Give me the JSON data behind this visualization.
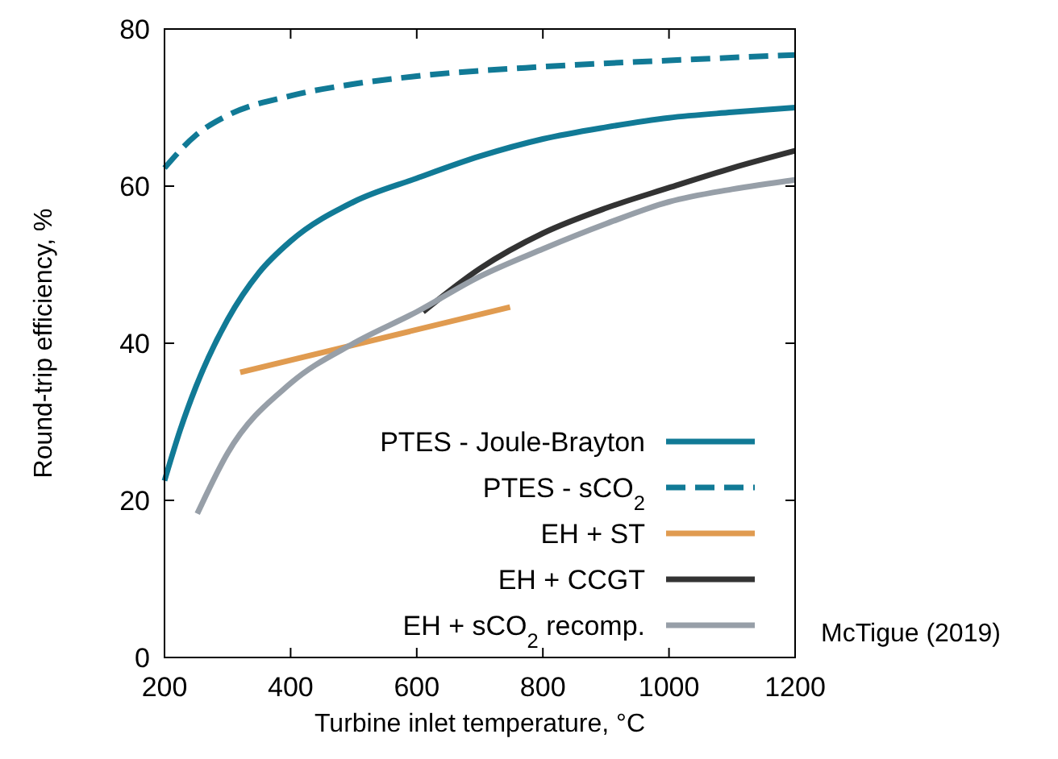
{
  "chart_data": {
    "type": "line",
    "xlabel": "Turbine inlet temperature, °C",
    "ylabel": "Round-trip efficiency, %",
    "xlim": [
      200,
      1200
    ],
    "ylim": [
      0,
      80
    ],
    "xticks": [
      200,
      400,
      600,
      800,
      1000,
      1200
    ],
    "yticks": [
      0,
      20,
      40,
      60,
      80
    ],
    "legend": "bottom right",
    "annotations": [
      "McTigue (2019)"
    ],
    "series": [
      {
        "name": "PTES - Joule-Brayton",
        "color": "#117a96",
        "line_style": "solid",
        "x": [
          200,
          225,
          250,
          300,
          350,
          400,
          500,
          600,
          700,
          800,
          900,
          1000,
          1100,
          1200
        ],
        "values": [
          22.5,
          29,
          34.5,
          43,
          49,
          53,
          58,
          61,
          63.8,
          66,
          67.5,
          68.7,
          69.4,
          70
        ]
      },
      {
        "name": "PTES - sCO$_{2}$",
        "color": "#117a96",
        "line_style": "dashed",
        "x": [
          200,
          250,
          300,
          400,
          500,
          600,
          800,
          1000,
          1200
        ],
        "values": [
          62.3,
          66.5,
          69,
          71.5,
          73,
          74,
          75.2,
          76,
          76.7
        ]
      },
      {
        "name": "EH + ST",
        "color": "#e09b50",
        "line_style": "solid",
        "x": [
          320,
          748
        ],
        "values": [
          36.3,
          44.6
        ]
      },
      {
        "name": "EH + CCGT",
        "color": "#333333",
        "line_style": "solid",
        "x": [
          610,
          700,
          800,
          900,
          1000,
          1100,
          1200
        ],
        "values": [
          44,
          49.5,
          54,
          57.2,
          59.8,
          62.3,
          64.5
        ]
      },
      {
        "name": "EH + sCO$_{2}$ recomp.",
        "color": "#979fa8",
        "line_style": "solid",
        "x": [
          252,
          300,
          400,
          500,
          600,
          700,
          800,
          900,
          1000,
          1100,
          1200
        ],
        "values": [
          18.3,
          26,
          34.9,
          40,
          44,
          48.5,
          52,
          55.2,
          58,
          59.6,
          60.8
        ]
      }
    ]
  }
}
